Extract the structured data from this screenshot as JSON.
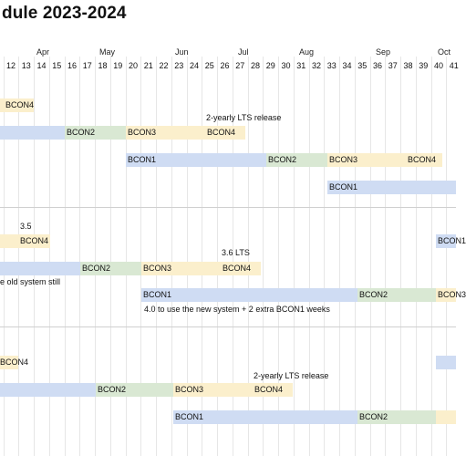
{
  "title": "dule 2023-2024",
  "months": [
    "Apr",
    "May",
    "Jun",
    "Jul",
    "Aug",
    "Sep",
    "Oct"
  ],
  "weeks": [
    "12",
    "13",
    "14",
    "15",
    "16",
    "17",
    "18",
    "19",
    "20",
    "21",
    "22",
    "23",
    "24",
    "25",
    "26",
    "27",
    "28",
    "29",
    "30",
    "31",
    "32",
    "33",
    "34",
    "35",
    "36",
    "37",
    "38",
    "39",
    "40",
    "41"
  ],
  "labels": {
    "bcon1": "BCON1",
    "bcon2": "BCON2",
    "bcon3": "BCON3",
    "bcon4": "BCON4"
  },
  "notes": {
    "lts_release_a": "2-yearly LTS release",
    "version_35": "3.5",
    "version_36": "3.6 LTS",
    "old_system": "e old system still",
    "new_system": "4.0 to use the new system + 2 extra BCON1 weeks",
    "lts_release_b": "2-yearly LTS release"
  },
  "colors": {
    "bcon1": "#cfdcf3",
    "bcon2": "#d9e8d3",
    "bcon3": "#fbefcc",
    "bcon4": "#fbefcc",
    "gridline": "#e6e6e6",
    "separator": "#d0d0d0"
  }
}
